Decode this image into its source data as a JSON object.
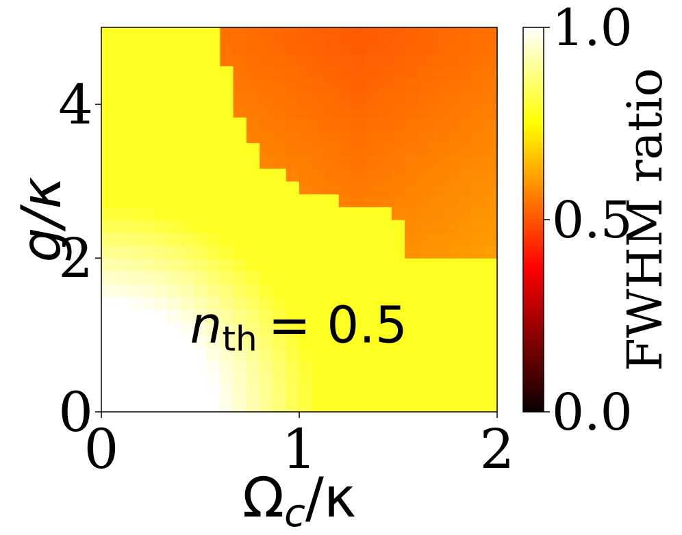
{
  "chart_data": {
    "type": "heatmap",
    "title": "",
    "annotation": {
      "symbol": "n",
      "subscript": "th",
      "text": "= 0.5",
      "x": 0.95,
      "y": 1.1
    },
    "xlabel": {
      "main": "Ω",
      "sub": "c",
      "rest": "/κ"
    },
    "ylabel": "g/κ",
    "xlim": [
      0,
      2
    ],
    "ylim": [
      0,
      5
    ],
    "x_ticks": [
      {
        "value": 0,
        "label": "0"
      },
      {
        "value": 1,
        "label": "1"
      },
      {
        "value": 2,
        "label": "2"
      }
    ],
    "y_ticks": [
      {
        "value": 0,
        "label": "0"
      },
      {
        "value": 2,
        "label": "2"
      },
      {
        "value": 4,
        "label": "4"
      }
    ],
    "grid": false,
    "colormap": "hot",
    "colorbar": {
      "label": "FWHM ratio",
      "range": [
        0.0,
        1.0
      ],
      "ticks": [
        {
          "value": 0.0,
          "label": "0.0"
        },
        {
          "value": 0.5,
          "label": "0.5"
        },
        {
          "value": 1.0,
          "label": "1.0"
        }
      ]
    },
    "grid_size": {
      "nx": 30,
      "ny": 30
    },
    "description": "FWHM ratio as a function of drive strength and coupling: near 1.0 (white) at small g and small Omega_c, yellow transition band, and an orange-red region (~0.50-0.57) for g/kappa above ~2 once Omega_c/kappa exceeds ~0.5; lowest values (~0.50) near Omega_c/kappa 1.3, g/kappa 5"
  }
}
